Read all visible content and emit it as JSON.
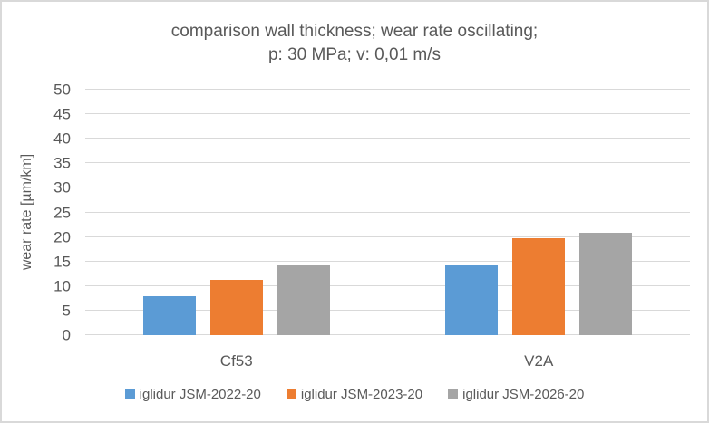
{
  "chart_data": {
    "type": "bar",
    "title_lines": [
      "comparison wall thickness; wear rate oscillating;",
      "p: 30 MPa; v: 0,01 m/s"
    ],
    "ylabel": "wear rate [µm/km]",
    "xlabel": "",
    "categories": [
      "Cf53",
      "V2A"
    ],
    "series": [
      {
        "name": "iglidur JSM-2022-20",
        "color": "#5B9BD5",
        "values": [
          8,
          14.2
        ]
      },
      {
        "name": "iglidur JSM-2023-20",
        "color": "#ED7D31",
        "values": [
          11.2,
          19.7
        ]
      },
      {
        "name": "iglidur JSM-2026-20",
        "color": "#A5A5A5",
        "values": [
          14.2,
          20.8
        ]
      }
    ],
    "ylim": [
      0,
      50
    ],
    "ytick_step": 5,
    "yticks": [
      0,
      5,
      10,
      15,
      20,
      25,
      30,
      35,
      40,
      45,
      50
    ],
    "grid": "on",
    "legend_position": "bottom",
    "colors": {
      "text": "#595959",
      "gridline": "#D9D9D9",
      "frame_border": "#D9D9D9",
      "background": "#FFFFFF"
    }
  }
}
